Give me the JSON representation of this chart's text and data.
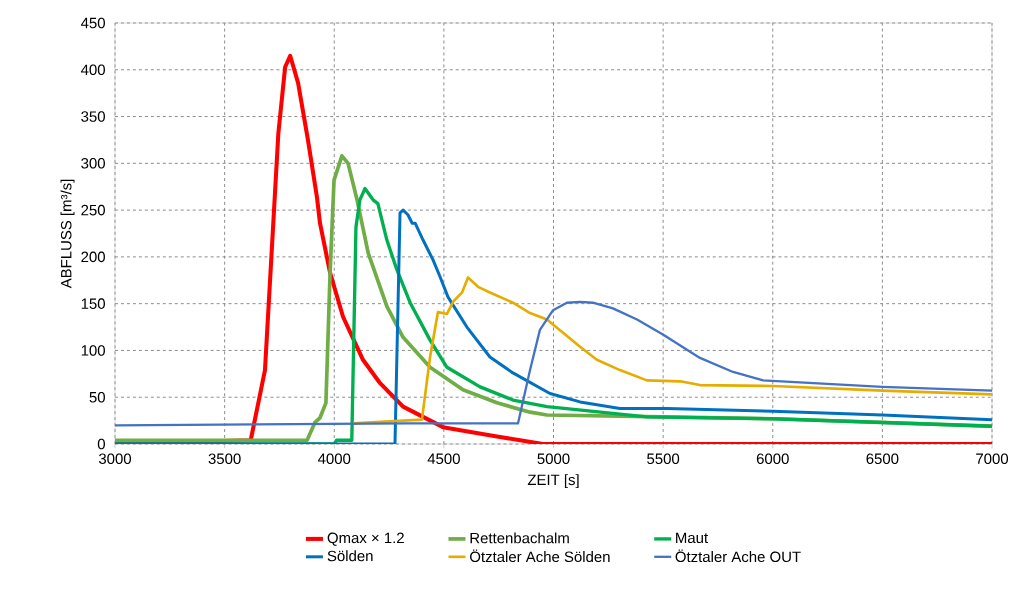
{
  "chart_data": {
    "type": "line",
    "xlabel": "ZEIT [s]",
    "ylabel": "ABFLUSS [m³/s]",
    "xlim": [
      3000,
      7000
    ],
    "xticks": [
      3000,
      3500,
      4000,
      4500,
      5000,
      5500,
      6000,
      6500,
      7000
    ],
    "ylim": [
      0,
      450
    ],
    "yticks": [
      0,
      50,
      100,
      150,
      200,
      250,
      300,
      350,
      400,
      450
    ],
    "grid": true,
    "legend": "bottom",
    "marker": "none",
    "line_style": "solid",
    "series": [
      {
        "name": "Qmax × 1.2",
        "color": "#ff0000",
        "x": [
          3000,
          3619,
          3684,
          3721,
          3745,
          3776,
          3799,
          3835,
          3880,
          3921,
          3935,
          3981,
          4040,
          4131,
          4209,
          4314,
          4496,
          4742,
          4952,
          7000
        ],
        "values": [
          0,
          4,
          79,
          232,
          332,
          403,
          415,
          386,
          325,
          264,
          236,
          183,
          136,
          90,
          65,
          40,
          18,
          8,
          0,
          0
        ]
      },
      {
        "name": "Rettenbachalm",
        "color": "#70ad47",
        "x": [
          3000,
          3876,
          3912,
          3935,
          3962,
          3981,
          3999,
          4035,
          4063,
          4104,
          4155,
          4240,
          4314,
          4437,
          4587,
          4742,
          4893,
          4970,
          5500,
          6000,
          6500,
          7000
        ],
        "values": [
          4,
          4,
          23,
          28,
          44,
          183,
          282,
          308,
          300,
          261,
          204,
          147,
          114,
          82,
          58,
          44,
          34,
          31,
          29,
          27,
          23,
          19
        ]
      },
      {
        "name": "Maut",
        "color": "#00b050",
        "x": [
          3000,
          4000,
          4010,
          4080,
          4099,
          4117,
          4140,
          4177,
          4199,
          4240,
          4286,
          4346,
          4437,
          4514,
          4665,
          4815,
          4970,
          5426,
          6000,
          6500,
          7000
        ],
        "values": [
          0,
          0,
          4,
          4,
          232,
          261,
          273,
          261,
          257,
          218,
          186,
          151,
          111,
          82,
          61,
          47,
          40,
          29,
          27,
          23,
          19
        ]
      },
      {
        "name": "Sölden",
        "color": "#0070c0",
        "x": [
          3000,
          4277,
          4300,
          4314,
          4336,
          4355,
          4369,
          4405,
          4450,
          4482,
          4519,
          4605,
          4710,
          4815,
          4984,
          5121,
          5303,
          5518,
          6000,
          6500,
          7000
        ],
        "values": [
          0,
          0,
          247,
          250,
          245,
          236,
          236,
          218,
          197,
          179,
          157,
          125,
          93,
          76,
          54,
          45,
          38,
          38,
          35,
          31,
          26
        ]
      },
      {
        "name": "Ötztaler Ache Sölden",
        "color": "#e6ac00",
        "x": [
          4086,
          4400,
          4437,
          4473,
          4514,
          4542,
          4583,
          4610,
          4656,
          4710,
          4815,
          4893,
          4970,
          5121,
          5198,
          5303,
          5426,
          5578,
          5668,
          6000,
          6500,
          7000
        ],
        "values": [
          22,
          26,
          93,
          141,
          139,
          152,
          162,
          178,
          168,
          162,
          151,
          140,
          133,
          104,
          90,
          79,
          68,
          67,
          63,
          62,
          57,
          53
        ]
      },
      {
        "name": "Ötztaler Ache OUT",
        "color": "#4472c4",
        "x": [
          3000,
          4332,
          4838,
          4893,
          4938,
          4998,
          5061,
          5121,
          5180,
          5271,
          5381,
          5499,
          5668,
          5819,
          5956,
          6500,
          7000
        ],
        "values": [
          20,
          22,
          22,
          79,
          122,
          143,
          151,
          152,
          151,
          145,
          133,
          117,
          92,
          77,
          68,
          61,
          57
        ]
      }
    ]
  }
}
